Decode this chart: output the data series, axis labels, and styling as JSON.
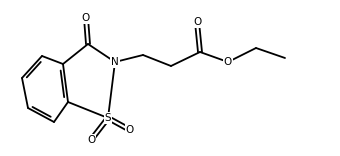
{
  "bg_color": "#ffffff",
  "line_color": "#000000",
  "line_width": 1.3,
  "figsize": [
    3.4,
    1.56
  ],
  "dpi": 100,
  "xlim": [
    0,
    340
  ],
  "ylim": [
    0,
    156
  ]
}
